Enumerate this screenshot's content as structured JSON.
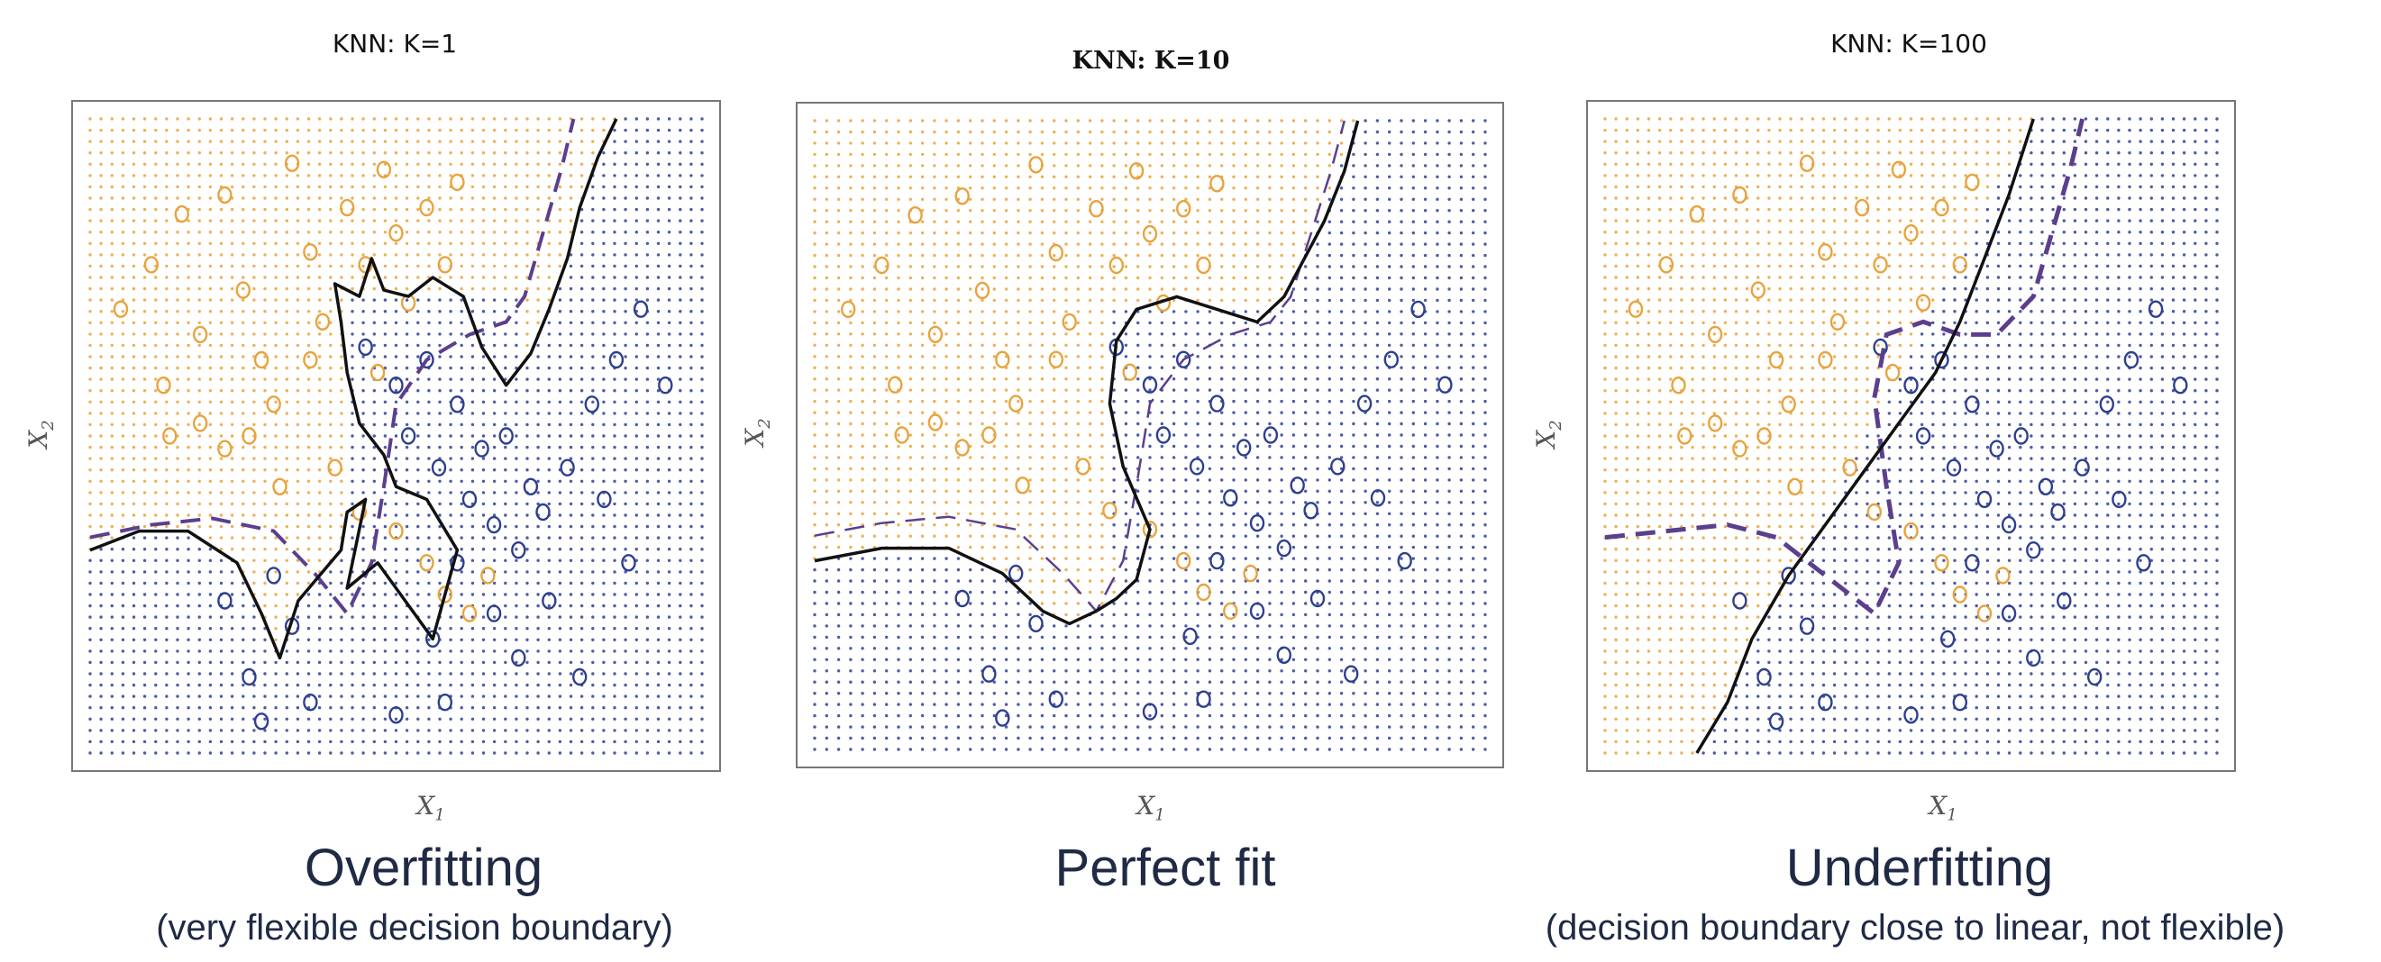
{
  "colors": {
    "orange": "#e8a33d",
    "blue": "#2e3f8f",
    "boundary": "#111111",
    "bayes": "#5b3f8e"
  },
  "panels": [
    {
      "title": "KNN: K=1",
      "xlabel": "X",
      "xsub": "1",
      "ylabel": "X",
      "ysub": "2",
      "caption": "Overfitting",
      "subcaption": "(very flexible decision boundary)"
    },
    {
      "title": "KNN: K=10",
      "xlabel": "X",
      "xsub": "1",
      "ylabel": "X",
      "ysub": "2",
      "caption": "Perfect fit",
      "subcaption": ""
    },
    {
      "title": "KNN: K=100",
      "xlabel": "X",
      "xsub": "1",
      "ylabel": "X",
      "ysub": "2",
      "caption": "Underfitting",
      "subcaption": "(decision boundary close to linear, not flexible)"
    }
  ],
  "chart_data": [
    {
      "type": "scatter",
      "title": "KNN: K=1",
      "xlabel": "X1",
      "ylabel": "X2",
      "xlim": [
        0,
        1
      ],
      "ylim": [
        0,
        1
      ],
      "series": [
        {
          "name": "",
          "color": "orange",
          "points": [
            [
              0.05,
              0.7
            ],
            [
              0.1,
              0.77
            ],
            [
              0.12,
              0.58
            ],
            [
              0.15,
              0.85
            ],
            [
              0.18,
              0.66
            ],
            [
              0.22,
              0.88
            ],
            [
              0.25,
              0.73
            ],
            [
              0.28,
              0.62
            ],
            [
              0.3,
              0.55
            ],
            [
              0.33,
              0.93
            ],
            [
              0.36,
              0.79
            ],
            [
              0.38,
              0.68
            ],
            [
              0.42,
              0.86
            ],
            [
              0.45,
              0.77
            ],
            [
              0.48,
              0.92
            ],
            [
              0.5,
              0.82
            ],
            [
              0.52,
              0.71
            ],
            [
              0.55,
              0.86
            ],
            [
              0.58,
              0.77
            ],
            [
              0.6,
              0.9
            ],
            [
              0.22,
              0.48
            ],
            [
              0.26,
              0.5
            ],
            [
              0.31,
              0.42
            ],
            [
              0.4,
              0.45
            ],
            [
              0.44,
              0.38
            ],
            [
              0.47,
              0.6
            ],
            [
              0.5,
              0.35
            ],
            [
              0.55,
              0.3
            ],
            [
              0.58,
              0.25
            ],
            [
              0.62,
              0.22
            ],
            [
              0.65,
              0.28
            ],
            [
              0.13,
              0.5
            ],
            [
              0.18,
              0.52
            ],
            [
              0.36,
              0.62
            ]
          ]
        },
        {
          "name": "",
          "color": "blue",
          "points": [
            [
              0.45,
              0.64
            ],
            [
              0.5,
              0.58
            ],
            [
              0.55,
              0.62
            ],
            [
              0.6,
              0.55
            ],
            [
              0.64,
              0.48
            ],
            [
              0.68,
              0.5
            ],
            [
              0.72,
              0.42
            ],
            [
              0.57,
              0.45
            ],
            [
              0.62,
              0.4
            ],
            [
              0.66,
              0.36
            ],
            [
              0.7,
              0.32
            ],
            [
              0.74,
              0.38
            ],
            [
              0.52,
              0.5
            ],
            [
              0.78,
              0.45
            ],
            [
              0.82,
              0.55
            ],
            [
              0.86,
              0.62
            ],
            [
              0.9,
              0.7
            ],
            [
              0.94,
              0.58
            ],
            [
              0.84,
              0.4
            ],
            [
              0.88,
              0.3
            ],
            [
              0.6,
              0.3
            ],
            [
              0.66,
              0.22
            ],
            [
              0.7,
              0.15
            ],
            [
              0.56,
              0.18
            ],
            [
              0.3,
              0.28
            ],
            [
              0.33,
              0.2
            ],
            [
              0.26,
              0.12
            ],
            [
              0.22,
              0.24
            ],
            [
              0.36,
              0.08
            ],
            [
              0.28,
              0.05
            ],
            [
              0.5,
              0.06
            ],
            [
              0.58,
              0.08
            ],
            [
              0.75,
              0.24
            ],
            [
              0.8,
              0.12
            ]
          ]
        }
      ]
    },
    {
      "type": "scatter",
      "title": "KNN: K=10",
      "xlabel": "X1",
      "ylabel": "X2",
      "xlim": [
        0,
        1
      ],
      "ylim": [
        0,
        1
      ],
      "series": [
        {
          "name": "",
          "color": "orange",
          "points": [
            [
              0.05,
              0.7
            ],
            [
              0.1,
              0.77
            ],
            [
              0.12,
              0.58
            ],
            [
              0.15,
              0.85
            ],
            [
              0.18,
              0.66
            ],
            [
              0.22,
              0.88
            ],
            [
              0.25,
              0.73
            ],
            [
              0.28,
              0.62
            ],
            [
              0.3,
              0.55
            ],
            [
              0.33,
              0.93
            ],
            [
              0.36,
              0.79
            ],
            [
              0.38,
              0.68
            ],
            [
              0.42,
              0.86
            ],
            [
              0.45,
              0.77
            ],
            [
              0.48,
              0.92
            ],
            [
              0.5,
              0.82
            ],
            [
              0.52,
              0.71
            ],
            [
              0.55,
              0.86
            ],
            [
              0.58,
              0.77
            ],
            [
              0.6,
              0.9
            ],
            [
              0.22,
              0.48
            ],
            [
              0.26,
              0.5
            ],
            [
              0.31,
              0.42
            ],
            [
              0.4,
              0.45
            ],
            [
              0.44,
              0.38
            ],
            [
              0.47,
              0.6
            ],
            [
              0.5,
              0.35
            ],
            [
              0.55,
              0.3
            ],
            [
              0.58,
              0.25
            ],
            [
              0.62,
              0.22
            ],
            [
              0.65,
              0.28
            ],
            [
              0.13,
              0.5
            ],
            [
              0.18,
              0.52
            ],
            [
              0.36,
              0.62
            ]
          ]
        },
        {
          "name": "",
          "color": "blue",
          "points": [
            [
              0.45,
              0.64
            ],
            [
              0.5,
              0.58
            ],
            [
              0.55,
              0.62
            ],
            [
              0.6,
              0.55
            ],
            [
              0.64,
              0.48
            ],
            [
              0.68,
              0.5
            ],
            [
              0.72,
              0.42
            ],
            [
              0.57,
              0.45
            ],
            [
              0.62,
              0.4
            ],
            [
              0.66,
              0.36
            ],
            [
              0.7,
              0.32
            ],
            [
              0.74,
              0.38
            ],
            [
              0.52,
              0.5
            ],
            [
              0.78,
              0.45
            ],
            [
              0.82,
              0.55
            ],
            [
              0.86,
              0.62
            ],
            [
              0.9,
              0.7
            ],
            [
              0.94,
              0.58
            ],
            [
              0.84,
              0.4
            ],
            [
              0.88,
              0.3
            ],
            [
              0.6,
              0.3
            ],
            [
              0.66,
              0.22
            ],
            [
              0.7,
              0.15
            ],
            [
              0.56,
              0.18
            ],
            [
              0.3,
              0.28
            ],
            [
              0.33,
              0.2
            ],
            [
              0.26,
              0.12
            ],
            [
              0.22,
              0.24
            ],
            [
              0.36,
              0.08
            ],
            [
              0.28,
              0.05
            ],
            [
              0.5,
              0.06
            ],
            [
              0.58,
              0.08
            ],
            [
              0.75,
              0.24
            ],
            [
              0.8,
              0.12
            ]
          ]
        }
      ]
    },
    {
      "type": "scatter",
      "title": "KNN: K=100",
      "xlabel": "X1",
      "ylabel": "X2",
      "xlim": [
        0,
        1
      ],
      "ylim": [
        0,
        1
      ],
      "series": [
        {
          "name": "",
          "color": "orange",
          "points": [
            [
              0.05,
              0.7
            ],
            [
              0.1,
              0.77
            ],
            [
              0.12,
              0.58
            ],
            [
              0.15,
              0.85
            ],
            [
              0.18,
              0.66
            ],
            [
              0.22,
              0.88
            ],
            [
              0.25,
              0.73
            ],
            [
              0.28,
              0.62
            ],
            [
              0.3,
              0.55
            ],
            [
              0.33,
              0.93
            ],
            [
              0.36,
              0.79
            ],
            [
              0.38,
              0.68
            ],
            [
              0.42,
              0.86
            ],
            [
              0.45,
              0.77
            ],
            [
              0.48,
              0.92
            ],
            [
              0.5,
              0.82
            ],
            [
              0.52,
              0.71
            ],
            [
              0.55,
              0.86
            ],
            [
              0.58,
              0.77
            ],
            [
              0.6,
              0.9
            ],
            [
              0.22,
              0.48
            ],
            [
              0.26,
              0.5
            ],
            [
              0.31,
              0.42
            ],
            [
              0.4,
              0.45
            ],
            [
              0.44,
              0.38
            ],
            [
              0.47,
              0.6
            ],
            [
              0.5,
              0.35
            ],
            [
              0.55,
              0.3
            ],
            [
              0.58,
              0.25
            ],
            [
              0.62,
              0.22
            ],
            [
              0.65,
              0.28
            ],
            [
              0.13,
              0.5
            ],
            [
              0.18,
              0.52
            ],
            [
              0.36,
              0.62
            ]
          ]
        },
        {
          "name": "",
          "color": "blue",
          "points": [
            [
              0.45,
              0.64
            ],
            [
              0.5,
              0.58
            ],
            [
              0.55,
              0.62
            ],
            [
              0.6,
              0.55
            ],
            [
              0.64,
              0.48
            ],
            [
              0.68,
              0.5
            ],
            [
              0.72,
              0.42
            ],
            [
              0.57,
              0.45
            ],
            [
              0.62,
              0.4
            ],
            [
              0.66,
              0.36
            ],
            [
              0.7,
              0.32
            ],
            [
              0.74,
              0.38
            ],
            [
              0.52,
              0.5
            ],
            [
              0.78,
              0.45
            ],
            [
              0.82,
              0.55
            ],
            [
              0.86,
              0.62
            ],
            [
              0.9,
              0.7
            ],
            [
              0.94,
              0.58
            ],
            [
              0.84,
              0.4
            ],
            [
              0.88,
              0.3
            ],
            [
              0.6,
              0.3
            ],
            [
              0.66,
              0.22
            ],
            [
              0.7,
              0.15
            ],
            [
              0.56,
              0.18
            ],
            [
              0.3,
              0.28
            ],
            [
              0.33,
              0.2
            ],
            [
              0.26,
              0.12
            ],
            [
              0.22,
              0.24
            ],
            [
              0.36,
              0.08
            ],
            [
              0.28,
              0.05
            ],
            [
              0.5,
              0.06
            ],
            [
              0.58,
              0.08
            ],
            [
              0.75,
              0.24
            ],
            [
              0.8,
              0.12
            ]
          ]
        }
      ]
    }
  ]
}
